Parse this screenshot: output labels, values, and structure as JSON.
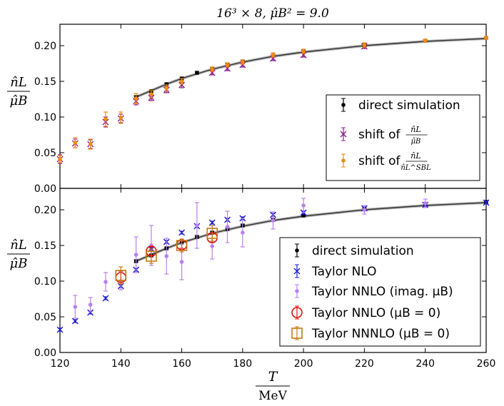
{
  "chart_data": [
    {
      "type": "scatter",
      "title": "16³ × 8,  μ̂B² = 9.0",
      "ylabel_num": "n̂L",
      "ylabel_den": "μ̂B",
      "xlabel_num": "T",
      "xlabel_den": "MeV",
      "xlim": [
        120,
        260
      ],
      "ylim": [
        0.0,
        0.23
      ],
      "xticks": [
        "120",
        "140",
        "160",
        "180",
        "200",
        "220",
        "240",
        "260"
      ],
      "yticks": [
        "0.00",
        "0.05",
        "0.10",
        "0.15",
        "0.20"
      ],
      "curve": {
        "name": "fit",
        "x": [
          145,
          150,
          155,
          160,
          170,
          180,
          190,
          200,
          220,
          240,
          260
        ],
        "y": [
          0.128,
          0.137,
          0.146,
          0.154,
          0.167,
          0.177,
          0.185,
          0.191,
          0.2,
          0.206,
          0.21
        ]
      },
      "legend": [
        "direct simulation",
        "shift of",
        "shift of"
      ],
      "legend_fracs": [
        {
          "num": "n̂L",
          "den": "μ̂B"
        },
        {
          "num": "n̂L",
          "den": "n̂L^SBL"
        }
      ],
      "series": [
        {
          "name": "direct simulation",
          "color": "#000000",
          "marker": "dot",
          "x": [
            145,
            150,
            155,
            160,
            165,
            170,
            175,
            180,
            190,
            200,
            220,
            240,
            260
          ],
          "y": [
            0.128,
            0.136,
            0.146,
            0.154,
            0.162,
            0.168,
            0.173,
            0.178,
            0.186,
            0.192,
            0.201,
            0.207,
            0.211
          ],
          "err": [
            0.002,
            0.002,
            0.002,
            0.002,
            0.002,
            0.002,
            0.002,
            0.002,
            0.002,
            0.002,
            0.002,
            0.002,
            0.002
          ]
        },
        {
          "name": "shift of n̂L/μ̂B",
          "color": "#8b1f8e",
          "marker": "x",
          "x": [
            120,
            125,
            130,
            135,
            140,
            145,
            150,
            155,
            160,
            170,
            175,
            180,
            190,
            200,
            220
          ],
          "y": [
            0.041,
            0.063,
            0.062,
            0.093,
            0.098,
            0.122,
            0.127,
            0.138,
            0.145,
            0.162,
            0.168,
            0.173,
            0.182,
            0.187,
            0.199
          ],
          "err": [
            0.006,
            0.006,
            0.006,
            0.007,
            0.006,
            0.005,
            0.004,
            0.004,
            0.004,
            0.003,
            0.003,
            0.003,
            0.003,
            0.003,
            0.003
          ]
        },
        {
          "name": "shift of n̂L/n̂L^SBL",
          "color": "#f08a12",
          "marker": "dot",
          "x": [
            120,
            125,
            130,
            135,
            140,
            145,
            150,
            155,
            160,
            170,
            175,
            180,
            190,
            200,
            220,
            240,
            260
          ],
          "y": [
            0.041,
            0.064,
            0.062,
            0.097,
            0.099,
            0.126,
            0.132,
            0.141,
            0.15,
            0.167,
            0.173,
            0.177,
            0.187,
            0.192,
            0.201,
            0.207,
            0.211
          ],
          "err": [
            0.005,
            0.007,
            0.007,
            0.01,
            0.008,
            0.007,
            0.005,
            0.004,
            0.004,
            0.003,
            0.003,
            0.003,
            0.003,
            0.003,
            0.003,
            0.002,
            0.002
          ]
        }
      ]
    },
    {
      "type": "scatter",
      "ylabel_num": "n̂L",
      "ylabel_den": "μ̂B",
      "xlim": [
        120,
        260
      ],
      "ylim": [
        0.0,
        0.23
      ],
      "xticks": [
        "120",
        "140",
        "160",
        "180",
        "200",
        "220",
        "240",
        "260"
      ],
      "yticks": [
        "0.00",
        "0.05",
        "0.10",
        "0.15",
        "0.20"
      ],
      "curve": {
        "name": "fit",
        "x": [
          145,
          150,
          155,
          160,
          170,
          180,
          190,
          200,
          220,
          240,
          260
        ],
        "y": [
          0.128,
          0.137,
          0.146,
          0.154,
          0.167,
          0.177,
          0.185,
          0.191,
          0.2,
          0.206,
          0.21
        ]
      },
      "legend": [
        "direct simulation",
        "Taylor NLO",
        "Taylor NNLO (imag. μB)",
        "Taylor NNLO (μB = 0)",
        "Taylor NNNLO (μB = 0)"
      ],
      "series": [
        {
          "name": "direct simulation",
          "color": "#000000",
          "marker": "dot",
          "x": [
            145,
            150,
            155,
            160,
            165,
            170,
            175,
            180,
            190,
            200,
            220,
            240,
            260
          ],
          "y": [
            0.128,
            0.136,
            0.146,
            0.154,
            0.162,
            0.168,
            0.173,
            0.178,
            0.186,
            0.192,
            0.201,
            0.207,
            0.211
          ],
          "err": [
            0.002,
            0.002,
            0.002,
            0.002,
            0.002,
            0.002,
            0.002,
            0.002,
            0.002,
            0.002,
            0.002,
            0.002,
            0.002
          ]
        },
        {
          "name": "Taylor NLO",
          "color": "#1f1fd0",
          "marker": "x",
          "x": [
            120,
            125,
            130,
            135,
            140,
            145,
            150,
            155,
            160,
            165,
            170,
            175,
            180,
            190,
            200,
            220,
            240,
            260
          ],
          "y": [
            0.032,
            0.044,
            0.056,
            0.076,
            0.093,
            0.116,
            0.145,
            0.155,
            0.168,
            0.177,
            0.182,
            0.186,
            0.188,
            0.193,
            0.196,
            0.202,
            0.207,
            0.21
          ],
          "err": [
            0.002,
            0.002,
            0.002,
            0.002,
            0.002,
            0.002,
            0.002,
            0.002,
            0.002,
            0.002,
            0.002,
            0.002,
            0.002,
            0.002,
            0.002,
            0.002,
            0.002,
            0.002
          ]
        },
        {
          "name": "Taylor NNLO (imag. μB)",
          "color": "#b980f0",
          "marker": "dot",
          "x": [
            125,
            130,
            135,
            140,
            145,
            150,
            155,
            160,
            165,
            170,
            175,
            180,
            190,
            200,
            220,
            240
          ],
          "y": [
            0.064,
            0.067,
            0.099,
            0.1,
            0.137,
            0.15,
            0.135,
            0.127,
            0.178,
            0.149,
            0.176,
            0.168,
            0.185,
            0.206,
            0.2,
            0.209
          ],
          "err": [
            0.016,
            0.01,
            0.013,
            0.012,
            0.025,
            0.028,
            0.025,
            0.025,
            0.032,
            0.018,
            0.022,
            0.02,
            0.012,
            0.01,
            0.006,
            0.006
          ]
        },
        {
          "name": "Taylor NNLO (μB = 0)",
          "color": "#e01010",
          "marker": "circle",
          "x": [
            140,
            150,
            160,
            170
          ],
          "y": [
            0.105,
            0.142,
            0.151,
            0.161
          ],
          "err": [
            0.009,
            0.006,
            0.005,
            0.007
          ]
        },
        {
          "name": "Taylor NNNLO (μB = 0)",
          "color": "#c87812",
          "marker": "square",
          "x": [
            140,
            150,
            160,
            170
          ],
          "y": [
            0.108,
            0.135,
            0.15,
            0.167
          ],
          "err": [
            0.012,
            0.01,
            0.009,
            0.011
          ]
        }
      ]
    }
  ]
}
